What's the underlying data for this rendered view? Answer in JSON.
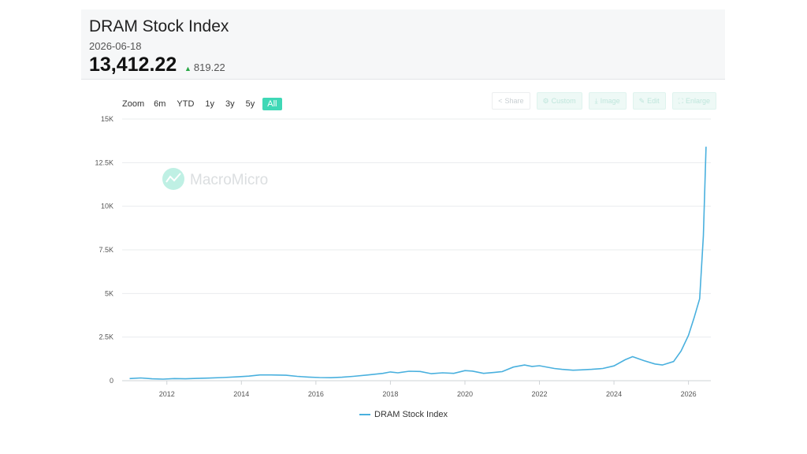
{
  "header": {
    "title": "DRAM Stock Index",
    "date": "2026-06-18",
    "value": "13,412.22",
    "change": "819.22",
    "change_direction": "up"
  },
  "zoom": {
    "label": "Zoom",
    "options": [
      "6m",
      "YTD",
      "1y",
      "3y",
      "5y",
      "All"
    ],
    "active": "All"
  },
  "tools": [
    {
      "label": "Share",
      "icon": "share-icon"
    },
    {
      "label": "Custom",
      "icon": "gear-icon"
    },
    {
      "label": "Image",
      "icon": "download-icon"
    },
    {
      "label": "Edit",
      "icon": "pencil-icon"
    },
    {
      "label": "Enlarge",
      "icon": "expand-icon"
    }
  ],
  "watermark": "MacroMicro",
  "colors": {
    "line": "#49b0de",
    "accent": "#3fd8b6",
    "up": "#28a745"
  },
  "chart_data": {
    "type": "line",
    "title": "DRAM Stock Index",
    "xlabel": "",
    "ylabel": "",
    "ylim": [
      0,
      15000
    ],
    "xlim": [
      2010.8,
      2026.6
    ],
    "yticks": [
      0,
      2500,
      5000,
      7500,
      10000,
      12500,
      15000
    ],
    "ytick_labels": [
      "0",
      "2.5K",
      "5K",
      "7.5K",
      "10K",
      "12.5K",
      "15K"
    ],
    "xticks": [
      2012,
      2014,
      2016,
      2018,
      2020,
      2022,
      2024,
      2026
    ],
    "xtick_labels": [
      "2012",
      "2014",
      "2016",
      "2018",
      "2020",
      "2022",
      "2024",
      "2026"
    ],
    "grid": true,
    "legend_position": "bottom",
    "series": [
      {
        "name": "DRAM Stock Index",
        "x": [
          2011.0,
          2011.3,
          2011.6,
          2011.9,
          2012.2,
          2012.5,
          2012.8,
          2013.1,
          2013.5,
          2013.9,
          2014.2,
          2014.5,
          2014.8,
          2015.2,
          2015.5,
          2015.8,
          2016.1,
          2016.4,
          2016.7,
          2017.0,
          2017.4,
          2017.8,
          2018.0,
          2018.2,
          2018.5,
          2018.8,
          2019.1,
          2019.4,
          2019.7,
          2020.0,
          2020.2,
          2020.5,
          2020.8,
          2021.0,
          2021.3,
          2021.6,
          2021.8,
          2022.0,
          2022.4,
          2022.6,
          2022.9,
          2023.1,
          2023.4,
          2023.7,
          2024.0,
          2024.3,
          2024.5,
          2024.8,
          2025.1,
          2025.3,
          2025.6,
          2025.8,
          2026.0,
          2026.15,
          2026.3,
          2026.4,
          2026.47
        ],
        "values": [
          120,
          160,
          110,
          90,
          120,
          110,
          130,
          150,
          180,
          220,
          260,
          330,
          330,
          310,
          250,
          210,
          180,
          170,
          200,
          250,
          330,
          420,
          500,
          450,
          540,
          530,
          400,
          450,
          420,
          580,
          550,
          420,
          480,
          520,
          780,
          900,
          820,
          860,
          700,
          650,
          600,
          620,
          650,
          700,
          850,
          1200,
          1380,
          1150,
          960,
          900,
          1100,
          1700,
          2600,
          3600,
          4700,
          8300,
          13412
        ]
      }
    ]
  },
  "legend": {
    "label": "DRAM Stock Index"
  }
}
